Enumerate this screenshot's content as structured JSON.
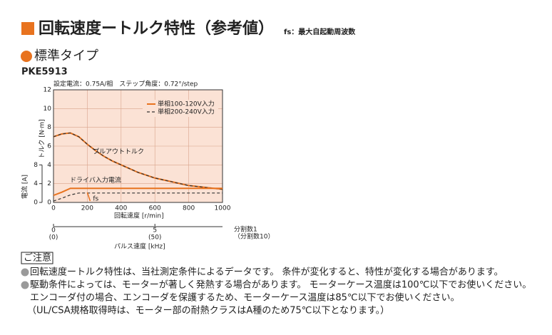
{
  "header": {
    "title": "回転速度ートルク特性（参考値）",
    "fs_note": "fs：最大自起動周波数",
    "subtitle": "標準タイプ",
    "model": "PKE5913"
  },
  "chart_data": {
    "type": "line",
    "conditions": "設定電流：0.75A/相　ステップ角度：0.72°/step",
    "x": [
      0,
      50,
      100,
      150,
      200,
      250,
      300,
      350,
      400,
      450,
      500,
      550,
      600,
      700,
      800,
      900,
      1000
    ],
    "series": [
      {
        "name": "単相100-120V入力",
        "color": "#e8731f",
        "dash": false,
        "values": [
          7.0,
          7.3,
          7.4,
          7.0,
          6.2,
          5.5,
          4.9,
          4.4,
          4.0,
          3.6,
          3.2,
          2.9,
          2.6,
          2.2,
          1.8,
          1.6,
          1.4
        ]
      },
      {
        "name": "単相200-240V入力",
        "color": "#333333",
        "dash": true,
        "values": [
          7.0,
          7.3,
          7.4,
          7.0,
          6.2,
          5.5,
          4.9,
          4.4,
          4.0,
          3.6,
          3.2,
          2.9,
          2.6,
          2.2,
          1.8,
          1.6,
          1.4
        ]
      }
    ],
    "current_series": [
      {
        "color": "#e8731f",
        "dash": false,
        "axis": "y2",
        "values": [
          1.5,
          2.2,
          3.0,
          3.0,
          3.0,
          3.0,
          3.0,
          3.0,
          3.0,
          3.0,
          3.0,
          3.0,
          3.0,
          3.0,
          3.0,
          3.0,
          3.0
        ]
      },
      {
        "color": "#333333",
        "dash": true,
        "axis": "y2",
        "values": [
          0.3,
          0.9,
          1.6,
          2.0,
          2.0,
          2.0,
          2.0,
          2.0,
          2.0,
          2.0,
          2.0,
          2.0,
          2.0,
          2.0,
          2.0,
          2.0,
          2.0
        ]
      }
    ],
    "xlim": [
      0,
      1000
    ],
    "xticks": [
      0,
      200,
      400,
      600,
      800,
      1000
    ],
    "xlabel": "回転速度 [r/min]",
    "ylim": [
      0,
      12
    ],
    "yticks": [
      0,
      2,
      4,
      6,
      8,
      10,
      12
    ],
    "ylabel": "トルク [N·m]",
    "y2lim": [
      0,
      8
    ],
    "y2ticks": [
      0,
      4,
      8
    ],
    "y2label": "電流 [A]",
    "grid": true,
    "background": "#fbe2d5",
    "annotations": {
      "torque": "プルアウトトルク",
      "current": "ドライバ入力電流"
    },
    "fs": {
      "label": "fs",
      "x": 200
    },
    "pulse_axis": {
      "label": "パルス速度 [kHz]",
      "lim": [
        0,
        8.333
      ],
      "ticks": [
        0,
        5
      ],
      "lim_div10": [
        0,
        83.33
      ],
      "ticks_div10": [
        {
          "value": 0,
          "label": "(0)"
        },
        {
          "value": 50,
          "label": "(50)"
        }
      ],
      "division_labels": [
        "分割数1",
        "（分割数10）"
      ]
    }
  },
  "notes": {
    "heading": "ご注意",
    "items": [
      "回転速度ートルク特性は、当社測定条件によるデータです。 条件が変化すると、特性が変化する場合があります。",
      "駆動条件によっては、モーターが著しく発熱する場合があります。 モーターケース温度は100℃以下でお使いください。"
    ],
    "continuation": [
      "エンコーダ付の場合、エンコーダを保護するため、モーターケース温度は85℃以下でお使いください。",
      "（UL/CSA規格取得時は、モーター部の耐熱クラスはA種のため75℃以下となります。）"
    ]
  }
}
